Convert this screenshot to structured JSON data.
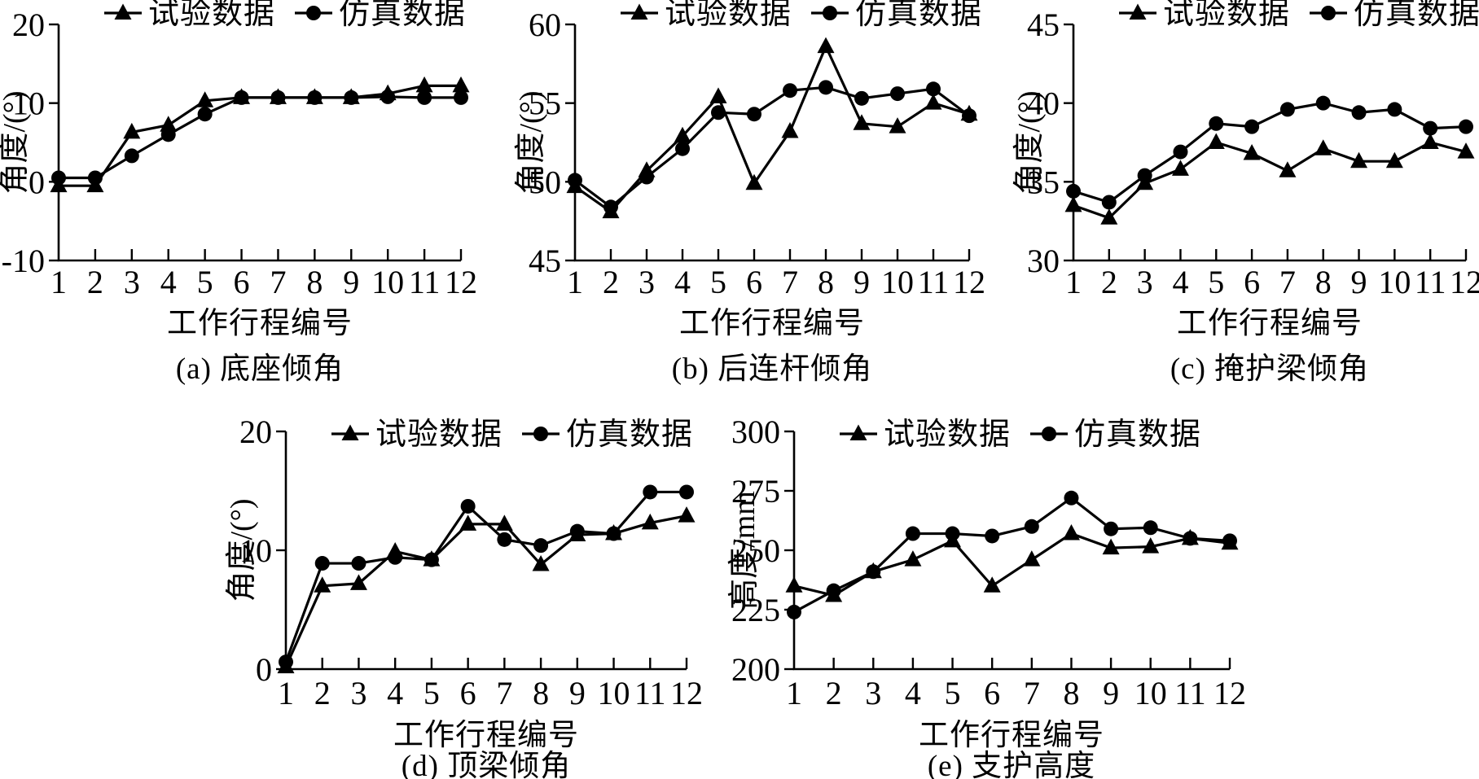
{
  "figure": {
    "background": "#ffffff",
    "line_color": "#000000",
    "legend": [
      {
        "label": "试验数据",
        "marker": "triangle"
      },
      {
        "label": "仿真数据",
        "marker": "circle"
      }
    ]
  },
  "chart_data": [
    {
      "id": "a",
      "type": "line",
      "caption": "(a) 底座倾角",
      "xlabel": "工作行程编号",
      "ylabel": "角度/(°)",
      "x": [
        1,
        2,
        3,
        4,
        5,
        6,
        7,
        8,
        9,
        10,
        11,
        12
      ],
      "ylim": [
        -10,
        20
      ],
      "yticks": [
        -10,
        0,
        10,
        20
      ],
      "grid": false,
      "legend_position": "top",
      "series": [
        {
          "name": "试验数据",
          "marker": "triangle",
          "values": [
            -0.5,
            -0.5,
            6.3,
            7.2,
            10.3,
            10.7,
            10.7,
            10.7,
            10.7,
            11.2,
            12.2,
            12.2
          ]
        },
        {
          "name": "仿真数据",
          "marker": "circle",
          "values": [
            0.5,
            0.5,
            3.3,
            6.0,
            8.6,
            10.7,
            10.7,
            10.7,
            10.7,
            10.8,
            10.7,
            10.7
          ]
        }
      ]
    },
    {
      "id": "b",
      "type": "line",
      "caption": "(b) 后连杆倾角",
      "xlabel": "工作行程编号",
      "ylabel": "角度/(°)",
      "x": [
        1,
        2,
        3,
        4,
        5,
        6,
        7,
        8,
        9,
        10,
        11,
        12
      ],
      "ylim": [
        45,
        60
      ],
      "yticks": [
        45,
        50,
        55,
        60
      ],
      "grid": false,
      "legend_position": "top",
      "series": [
        {
          "name": "试验数据",
          "marker": "triangle",
          "values": [
            49.7,
            48.1,
            50.7,
            52.9,
            55.4,
            49.9,
            53.2,
            58.6,
            53.7,
            53.5,
            55.0,
            54.3
          ]
        },
        {
          "name": "仿真数据",
          "marker": "circle",
          "values": [
            50.1,
            48.4,
            50.3,
            52.1,
            54.4,
            54.3,
            55.8,
            56.0,
            55.3,
            55.6,
            55.9,
            54.2
          ]
        }
      ]
    },
    {
      "id": "c",
      "type": "line",
      "caption": "(c) 掩护梁倾角",
      "xlabel": "工作行程编号",
      "ylabel": "角度/(°)",
      "x": [
        1,
        2,
        3,
        4,
        5,
        6,
        7,
        8,
        9,
        10,
        11,
        12
      ],
      "ylim": [
        30,
        45
      ],
      "yticks": [
        30,
        35,
        40,
        45
      ],
      "grid": false,
      "legend_position": "top",
      "series": [
        {
          "name": "试验数据",
          "marker": "triangle",
          "values": [
            33.5,
            32.7,
            34.9,
            35.8,
            37.5,
            36.8,
            35.7,
            37.1,
            36.3,
            36.3,
            37.5,
            36.9
          ]
        },
        {
          "name": "仿真数据",
          "marker": "circle",
          "values": [
            34.4,
            33.7,
            35.4,
            36.9,
            38.7,
            38.5,
            39.6,
            40.0,
            39.4,
            39.6,
            38.4,
            38.5
          ]
        }
      ]
    },
    {
      "id": "d",
      "type": "line",
      "caption": "(d) 顶梁倾角",
      "xlabel": "工作行程编号",
      "ylabel": "角度/(°)",
      "x": [
        1,
        2,
        3,
        4,
        5,
        6,
        7,
        8,
        9,
        10,
        11,
        12
      ],
      "ylim": [
        0,
        20
      ],
      "yticks": [
        0,
        10,
        20
      ],
      "grid": false,
      "legend_position": "top-inside",
      "series": [
        {
          "name": "试验数据",
          "marker": "triangle",
          "values": [
            0.2,
            7.0,
            7.2,
            9.9,
            9.2,
            12.2,
            12.2,
            8.8,
            11.3,
            11.4,
            12.3,
            12.9
          ]
        },
        {
          "name": "仿真数据",
          "marker": "circle",
          "values": [
            0.6,
            8.9,
            8.9,
            9.4,
            9.2,
            13.7,
            10.9,
            10.4,
            11.6,
            11.4,
            14.9,
            14.9
          ]
        }
      ]
    },
    {
      "id": "e",
      "type": "line",
      "caption": "(e) 支护高度",
      "xlabel": "工作行程编号",
      "ylabel": "高度/mm",
      "x": [
        1,
        2,
        3,
        4,
        5,
        6,
        7,
        8,
        9,
        10,
        11,
        12
      ],
      "ylim": [
        200,
        300
      ],
      "yticks": [
        200,
        225,
        250,
        275,
        300
      ],
      "grid": false,
      "legend_position": "top-inside",
      "series": [
        {
          "name": "试验数据",
          "marker": "triangle",
          "values": [
            235,
            231,
            241,
            246,
            254,
            235,
            246,
            257,
            251,
            251.5,
            255,
            253
          ]
        },
        {
          "name": "仿真数据",
          "marker": "circle",
          "values": [
            224,
            233,
            241,
            257,
            257,
            256,
            260,
            272,
            259,
            259.5,
            255,
            254
          ]
        }
      ]
    }
  ]
}
